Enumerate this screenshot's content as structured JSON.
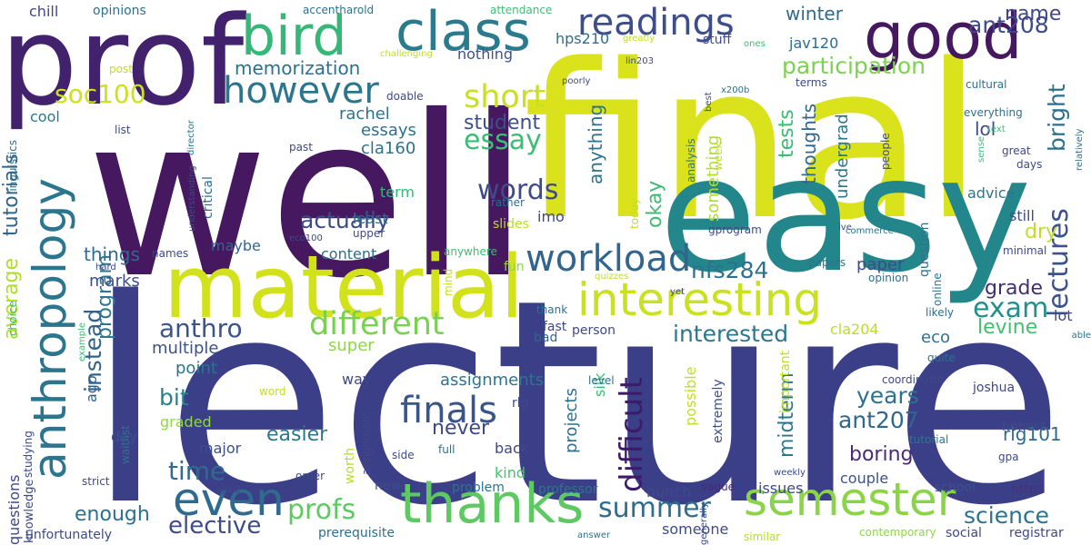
{
  "words": [
    {
      "text": "well",
      "color": "#46185f"
    },
    {
      "text": "lecture",
      "color": "#3b3f87"
    },
    {
      "text": "final",
      "color": "#d9e21b"
    },
    {
      "text": "easy",
      "color": "#23868b"
    },
    {
      "text": "prof",
      "color": "#43226d"
    },
    {
      "text": "material",
      "color": "#d1e11c"
    },
    {
      "text": "good",
      "color": "#46185f"
    },
    {
      "text": "class",
      "color": "#2a7b8e"
    },
    {
      "text": "anthropology",
      "color": "#2b768e"
    },
    {
      "text": "bird",
      "color": "#35b778"
    },
    {
      "text": "interesting",
      "color": "#cae11f"
    },
    {
      "text": "thanks",
      "color": "#5ec862"
    },
    {
      "text": "semester",
      "color": "#8ad547"
    },
    {
      "text": "even",
      "color": "#2f6b8e"
    },
    {
      "text": "readings",
      "color": "#3d4e8a"
    },
    {
      "text": "however",
      "color": "#2b768e"
    },
    {
      "text": "finals",
      "color": "#39568c"
    },
    {
      "text": "workload",
      "color": "#31658e"
    },
    {
      "text": "different",
      "color": "#79d151"
    },
    {
      "text": "essay",
      "color": "#3cbc75"
    },
    {
      "text": "short",
      "color": "#c8e020"
    },
    {
      "text": "lectures",
      "color": "#3b528b"
    },
    {
      "text": "difficult",
      "color": "#3e1a6a"
    },
    {
      "text": "summer",
      "color": "#2f6c8e"
    },
    {
      "text": "profs",
      "color": "#5ec962"
    },
    {
      "text": "words",
      "color": "#3d4c89"
    },
    {
      "text": "soc100",
      "color": "#cce21d"
    },
    {
      "text": "participation",
      "color": "#7cd250"
    },
    {
      "text": "exam",
      "color": "#21908d"
    },
    {
      "text": "ant208",
      "color": "#3e4989"
    },
    {
      "text": "bright",
      "color": "#2d708e"
    },
    {
      "text": "tutorials",
      "color": "#31648d"
    },
    {
      "text": "anthro",
      "color": "#3a548c"
    },
    {
      "text": "time",
      "color": "#306a8e"
    },
    {
      "text": "elective",
      "color": "#3d4d8a"
    },
    {
      "text": "average",
      "color": "#b0dd2f"
    },
    {
      "text": "instead",
      "color": "#33628d"
    },
    {
      "text": "actually",
      "color": "#3e4c8a"
    },
    {
      "text": "ant207",
      "color": "#30678e"
    },
    {
      "text": "interested",
      "color": "#2a778e"
    },
    {
      "text": "years",
      "color": "#2d718e"
    },
    {
      "text": "nfs284",
      "color": "#2c718e"
    },
    {
      "text": "science",
      "color": "#2c738e"
    },
    {
      "text": "memorization",
      "color": "#2d708e"
    },
    {
      "text": "midterm",
      "color": "#2a778e"
    },
    {
      "text": "easier",
      "color": "#2a778e"
    },
    {
      "text": "boring",
      "color": "#4a2a78"
    },
    {
      "text": "bit",
      "color": "#25838e"
    },
    {
      "text": "enough",
      "color": "#2d718e"
    },
    {
      "text": "never",
      "color": "#3f4889"
    },
    {
      "text": "student",
      "color": "#3c4f8a"
    },
    {
      "text": "okay",
      "color": "#3fbc73"
    },
    {
      "text": "tests",
      "color": "#3cbb75"
    },
    {
      "text": "grade",
      "color": "#42306c"
    },
    {
      "text": "name",
      "color": "#3f4788"
    },
    {
      "text": "dry",
      "color": "#bfe022"
    },
    {
      "text": "levine",
      "color": "#44bf70"
    },
    {
      "text": "program",
      "color": "#2a778e"
    },
    {
      "text": "multiple",
      "color": "#3b528b"
    },
    {
      "text": "rachel",
      "color": "#2b748e"
    },
    {
      "text": "lol",
      "color": "#3e4c8a"
    },
    {
      "text": "winter",
      "color": "#2f6b8e"
    },
    {
      "text": "things",
      "color": "#306a8e"
    },
    {
      "text": "essays",
      "color": "#2d718e"
    },
    {
      "text": "nothing",
      "color": "#3b528b"
    },
    {
      "text": "hps210",
      "color": "#2e6e8e"
    },
    {
      "text": "jav120",
      "color": "#2e6d8e"
    },
    {
      "text": "marks",
      "color": "#3d4e8a"
    },
    {
      "text": "maybe",
      "color": "#31678e"
    },
    {
      "text": "cla160",
      "color": "#2d718e"
    },
    {
      "text": "imo",
      "color": "#3e4989"
    },
    {
      "text": "term",
      "color": "#35b779"
    },
    {
      "text": "anything",
      "color": "#2b748e"
    },
    {
      "text": "thoughts",
      "color": "#31678e"
    },
    {
      "text": "undergrad",
      "color": "#2b758e"
    },
    {
      "text": "something",
      "color": "#b2dd2d"
    },
    {
      "text": "paper",
      "color": "#3e4c8a"
    },
    {
      "text": "super",
      "color": "#8ed645"
    },
    {
      "text": "way",
      "color": "#3f4788"
    },
    {
      "text": "assignments",
      "color": "#2b758e"
    },
    {
      "text": "point",
      "color": "#2b748e"
    },
    {
      "text": "content",
      "color": "#2e6e8e"
    },
    {
      "text": "least",
      "color": "#2e6f8e"
    },
    {
      "text": "still",
      "color": "#3e4c8a"
    },
    {
      "text": "advice",
      "color": "#2a788e"
    },
    {
      "text": "question",
      "color": "#2c738e"
    },
    {
      "text": "cool",
      "color": "#2a788e"
    },
    {
      "text": "stuff",
      "color": "#3e4989"
    },
    {
      "text": "critical",
      "color": "#2e6d8e"
    },
    {
      "text": "ago",
      "color": "#32658e"
    },
    {
      "text": "day",
      "color": "#3b518b"
    },
    {
      "text": "major",
      "color": "#3d4e8a"
    },
    {
      "text": "graded",
      "color": "#8fd744"
    },
    {
      "text": "back",
      "color": "#3f4788"
    },
    {
      "text": "kind",
      "color": "#48c16e"
    },
    {
      "text": "projects",
      "color": "#2c718e"
    },
    {
      "text": "silk",
      "color": "#3fbc73"
    },
    {
      "text": "possible",
      "color": "#c0df25"
    },
    {
      "text": "extremely",
      "color": "#3b518b"
    },
    {
      "text": "important",
      "color": "#bddf26"
    },
    {
      "text": "rlg101",
      "color": "#306a8e"
    },
    {
      "text": "eco",
      "color": "#2c728e"
    },
    {
      "text": "cla204",
      "color": "#bade28"
    },
    {
      "text": "couple",
      "color": "#3b528b"
    },
    {
      "text": "issues",
      "color": "#3e4989"
    },
    {
      "text": "bunch",
      "color": "#3e4a89"
    },
    {
      "text": "someone",
      "color": "#3e4c8a"
    },
    {
      "text": "honest",
      "color": "#3e4c8a"
    },
    {
      "text": "lot",
      "color": "#3f4788"
    },
    {
      "text": "worth",
      "color": "#b5de2b"
    },
    {
      "text": "fun",
      "color": "#8fd744"
    },
    {
      "text": "slides",
      "color": "#b8de29"
    },
    {
      "text": "fast",
      "color": "#3e4989"
    },
    {
      "text": "bad",
      "color": "#32648e"
    },
    {
      "text": "rlg",
      "color": "#3e4989"
    },
    {
      "text": "new",
      "color": "#3e4c8a"
    },
    {
      "text": "problem",
      "color": "#2c738e"
    },
    {
      "text": "professor",
      "color": "#2b758e"
    },
    {
      "text": "vague",
      "color": "#482878"
    },
    {
      "text": "school",
      "color": "#3b518b"
    },
    {
      "text": "https",
      "color": "#46337e"
    },
    {
      "text": "questions",
      "color": "#3f4788"
    },
    {
      "text": "knowledge",
      "color": "#3e4a89"
    },
    {
      "text": "unfortunately",
      "color": "#3e4989"
    },
    {
      "text": "prerequisite",
      "color": "#2e6e8e"
    },
    {
      "text": "similar",
      "color": "#b5de2b"
    },
    {
      "text": "contemporary",
      "color": "#8fd744"
    },
    {
      "text": "social",
      "color": "#3e4989"
    },
    {
      "text": "registrar",
      "color": "#3e4989"
    },
    {
      "text": "answer",
      "color": "#2d708e"
    },
    {
      "text": "weekly",
      "color": "#3e4989"
    },
    {
      "text": "generally",
      "color": "#3e4989"
    },
    {
      "text": "tutorial",
      "color": "#2a788e"
    },
    {
      "text": "gpa",
      "color": "#3e4989"
    },
    {
      "text": "joshua",
      "color": "#3e4989"
    },
    {
      "text": "coordinator",
      "color": "#3e4989"
    },
    {
      "text": "quite",
      "color": "#2c728e"
    },
    {
      "text": "likely",
      "color": "#2e6e8e"
    },
    {
      "text": "minimal",
      "color": "#3e4989"
    },
    {
      "text": "online",
      "color": "#2b758e"
    },
    {
      "text": "people",
      "color": "#3e4989"
    },
    {
      "text": "ive",
      "color": "#3e4989"
    },
    {
      "text": "commerce",
      "color": "#2b748e"
    },
    {
      "text": "gprogram",
      "color": "#3e4989"
    },
    {
      "text": "opinion",
      "color": "#2c728e"
    },
    {
      "text": "papers",
      "color": "#2c728e"
    },
    {
      "text": "level",
      "color": "#2c728e"
    },
    {
      "text": "person",
      "color": "#3e4989"
    },
    {
      "text": "thank",
      "color": "#2c728e"
    },
    {
      "text": "quizzes",
      "color": "#c0df25"
    },
    {
      "text": "yet",
      "color": "#3e4989"
    },
    {
      "text": "mind",
      "color": "#c0df25"
    },
    {
      "text": "anywhere",
      "color": "#3fbc73"
    },
    {
      "text": "upper",
      "color": "#3e4989"
    },
    {
      "text": "names",
      "color": "#3e4989"
    },
    {
      "text": "side",
      "color": "#3e4989"
    },
    {
      "text": "word",
      "color": "#c0df25"
    },
    {
      "text": "waitlist",
      "color": "#2c728e"
    },
    {
      "text": "studying",
      "color": "#3e4989"
    },
    {
      "text": "assignment",
      "color": "#3e4989"
    },
    {
      "text": "full",
      "color": "#2c728e"
    },
    {
      "text": "order",
      "color": "#3e4989"
    },
    {
      "text": "quiz",
      "color": "#3e4989"
    },
    {
      "text": "strict",
      "color": "#3e4989"
    },
    {
      "text": "hard",
      "color": "#3e4989"
    },
    {
      "text": "example",
      "color": "#3fbc73"
    },
    {
      "text": "choice",
      "color": "#3fbc73"
    },
    {
      "text": "chill",
      "color": "#3e4989"
    },
    {
      "text": "opinions",
      "color": "#2c728e"
    },
    {
      "text": "accentharold",
      "color": "#2c728e"
    },
    {
      "text": "attendance",
      "color": "#3fbc73"
    },
    {
      "text": "challenging",
      "color": "#c0df25"
    },
    {
      "text": "greatly",
      "color": "#c0df25"
    },
    {
      "text": "ones",
      "color": "#3fbc73"
    },
    {
      "text": "lin203",
      "color": "#3e4989"
    },
    {
      "text": "poorly",
      "color": "#3e4989"
    },
    {
      "text": "best",
      "color": "#3e4989"
    },
    {
      "text": "x200b",
      "color": "#2c728e"
    },
    {
      "text": "terms",
      "color": "#3e4989"
    },
    {
      "text": "cultural",
      "color": "#2c728e"
    },
    {
      "text": "everything",
      "color": "#2c728e"
    },
    {
      "text": "text",
      "color": "#3fbc73"
    },
    {
      "text": "great",
      "color": "#3e4989"
    },
    {
      "text": "sense",
      "color": "#3fbc73"
    },
    {
      "text": "relatively",
      "color": "#2c728e"
    },
    {
      "text": "days",
      "color": "#3e4989"
    },
    {
      "text": "linguistics",
      "color": "#2c728e"
    },
    {
      "text": "post",
      "color": "#c0df25"
    },
    {
      "text": "list",
      "color": "#3e4989"
    },
    {
      "text": "past",
      "color": "#3e4989"
    },
    {
      "text": "understanding",
      "color": "#3e4989"
    },
    {
      "text": "director",
      "color": "#2c728e"
    },
    {
      "text": "eco100",
      "color": "#3e4989"
    },
    {
      "text": "doable",
      "color": "#3e4989"
    },
    {
      "text": "rather",
      "color": "#2c728e"
    },
    {
      "text": "analysis",
      "color": "#2c728e"
    },
    {
      "text": "week",
      "color": "#c0df25"
    },
    {
      "text": "today",
      "color": "#c0df25"
    },
    {
      "text": "able",
      "color": "#2c728e"
    }
  ]
}
